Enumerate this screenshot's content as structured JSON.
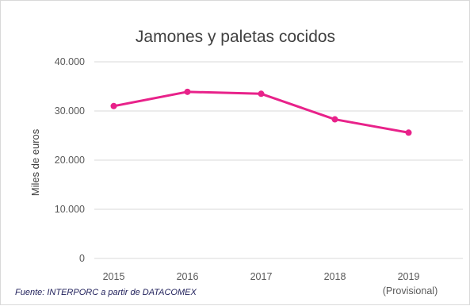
{
  "chart_data": {
    "type": "line",
    "title": "Jamones y paletas cocidos",
    "ylabel": "Miles de euros",
    "xlabel": "",
    "categories": [
      "2015",
      "2016",
      "2017",
      "2018",
      "2019"
    ],
    "category_notes": [
      "",
      "",
      "",
      "",
      "(Provisional)"
    ],
    "series": [
      {
        "values": [
          31000,
          33900,
          33500,
          28300,
          25600
        ]
      }
    ],
    "ylim": [
      0,
      40000
    ],
    "yticks": [
      0,
      10000,
      20000,
      30000,
      40000
    ],
    "ytick_labels": [
      "0",
      "10.000",
      "20.000",
      "30.000",
      "40.000"
    ],
    "grid": true,
    "line_color": "#e8228a"
  },
  "source_note": "Fuente: INTERPORC  a partir de DATACOMEX"
}
